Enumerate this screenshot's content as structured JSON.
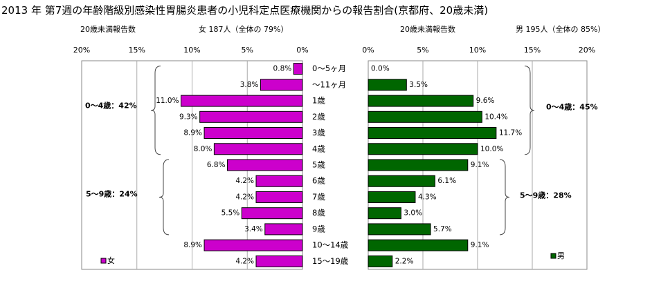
{
  "title": "2013 年 第7週の年齢階級別感染性胃腸炎患者の小児科定点医療機関からの報告割合(京都府、20歳未満)",
  "categories": [
    "0〜5ヶ月",
    "〜11ヶ月",
    "1歳",
    "2歳",
    "3歳",
    "4歳",
    "5歳",
    "6歳",
    "7歳",
    "8歳",
    "9歳",
    "10〜14歳",
    "15〜19歳"
  ],
  "colors": {
    "female": "#cc00cc",
    "male": "#006600"
  },
  "chart_data": [
    {
      "type": "bar",
      "orientation": "horizontal-reversed",
      "header_left": "20歳未満報告数",
      "header_right": "女 187人（全体の 79%）",
      "xlim": [
        0,
        20
      ],
      "x_ticks": [
        "20%",
        "15%",
        "10%",
        "5%",
        "0%"
      ],
      "categories": [
        "0〜5ヶ月",
        "〜11ヶ月",
        "1歳",
        "2歳",
        "3歳",
        "4歳",
        "5歳",
        "6歳",
        "7歳",
        "8歳",
        "9歳",
        "10〜14歳",
        "15〜19歳"
      ],
      "series": [
        {
          "name": "女",
          "values": [
            0.8,
            3.8,
            11.0,
            9.3,
            8.9,
            8.0,
            6.8,
            4.2,
            4.2,
            5.5,
            3.4,
            8.9,
            4.2
          ],
          "labels": [
            "0.8%",
            "3.8%",
            "11.0%",
            "9.3%",
            "8.9%",
            "8.0%",
            "6.8%",
            "4.2%",
            "4.2%",
            "5.5%",
            "3.4%",
            "8.9%",
            "4.2%"
          ]
        }
      ],
      "annotations": [
        "0〜4歳：42%",
        "5〜9歳：24%"
      ],
      "legend": "bottom-left",
      "grid": true
    },
    {
      "type": "bar",
      "orientation": "horizontal",
      "header_left": "20歳未満報告数",
      "header_right": "男 195人（全体の 85%）",
      "xlim": [
        0,
        20
      ],
      "x_ticks": [
        "0%",
        "5%",
        "10%",
        "15%",
        "20%"
      ],
      "categories": [
        "0〜5ヶ月",
        "〜11ヶ月",
        "1歳",
        "2歳",
        "3歳",
        "4歳",
        "5歳",
        "6歳",
        "7歳",
        "8歳",
        "9歳",
        "10〜14歳",
        "15〜19歳"
      ],
      "series": [
        {
          "name": "男",
          "values": [
            0.0,
            3.5,
            9.6,
            10.4,
            11.7,
            10.0,
            9.1,
            6.1,
            4.3,
            3.0,
            5.7,
            9.1,
            2.2
          ],
          "labels": [
            "0.0%",
            "3.5%",
            "9.6%",
            "10.4%",
            "11.7%",
            "10.0%",
            "9.1%",
            "6.1%",
            "4.3%",
            "3.0%",
            "5.7%",
            "9.1%",
            "2.2%"
          ]
        }
      ],
      "annotations": [
        "0〜4歳：45%",
        "5〜9歳：28%"
      ],
      "legend": "bottom-left",
      "grid": true
    }
  ]
}
